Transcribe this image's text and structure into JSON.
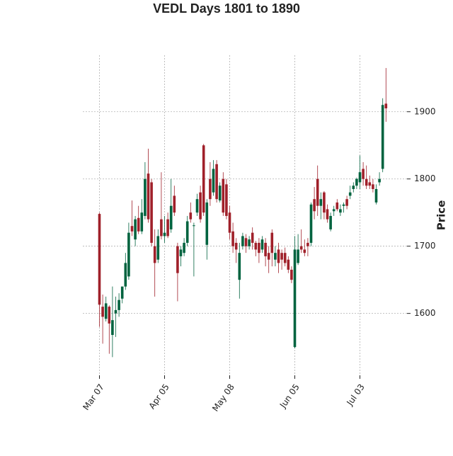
{
  "chart_data": {
    "type": "candlestick",
    "title": "VEDL Days 1801 to 1890",
    "ylabel": "Price",
    "categories": [
      "Mar 07",
      null,
      null,
      null,
      null,
      null,
      null,
      null,
      null,
      null,
      null,
      null,
      null,
      null,
      null,
      null,
      null,
      null,
      null,
      null,
      "Apr 05",
      null,
      null,
      null,
      null,
      null,
      null,
      null,
      null,
      null,
      null,
      null,
      null,
      null,
      null,
      null,
      null,
      null,
      null,
      null,
      "May 08",
      null,
      null,
      null,
      null,
      null,
      null,
      null,
      null,
      null,
      null,
      null,
      null,
      null,
      null,
      null,
      null,
      null,
      null,
      null,
      "Jun 05",
      null,
      null,
      null,
      null,
      null,
      null,
      null,
      null,
      null,
      null,
      null,
      null,
      null,
      null,
      null,
      null,
      null,
      null,
      null,
      "Jul 03",
      null,
      null,
      null,
      null,
      null,
      null,
      null,
      null
    ],
    "open": [
      1748,
      1610,
      1592,
      1610,
      1568,
      1600,
      1605,
      1622,
      1640,
      1655,
      1730,
      1710,
      1742,
      1722,
      1745,
      1808,
      1795,
      1700,
      1680,
      1740,
      1715,
      1740,
      1725,
      1775,
      1700,
      1685,
      1690,
      1705,
      1750,
      1730,
      1750,
      1780,
      1850,
      1702,
      1800,
      1780,
      1822,
      1768,
      1800,
      1792,
      1750,
      1722,
      1705,
      1650,
      1700,
      1712,
      1700,
      1720,
      1705,
      1705,
      1695,
      1705,
      1690,
      1720,
      1680,
      1695,
      1690,
      1690,
      1680,
      1665,
      1550,
      1675,
      1700,
      1695,
      1705,
      1705,
      1770,
      1800,
      1760,
      1780,
      1755,
      1725,
      1752,
      1765,
      1750,
      1760,
      1770,
      1775,
      1785,
      1790,
      1795,
      1815,
      1800,
      1795,
      1792,
      1765,
      1795,
      1815,
      1912
    ],
    "high": [
      1750,
      1628,
      1625,
      1612,
      1640,
      1625,
      1630,
      1640,
      1690,
      1735,
      1768,
      1745,
      1760,
      1770,
      1825,
      1845,
      1800,
      1725,
      1725,
      1810,
      1745,
      1750,
      1800,
      1790,
      1705,
      1700,
      1712,
      1745,
      1765,
      1735,
      1778,
      1790,
      1852,
      1770,
      1825,
      1828,
      1828,
      1795,
      1810,
      1800,
      1760,
      1735,
      1712,
      1705,
      1720,
      1718,
      1715,
      1728,
      1708,
      1712,
      1715,
      1712,
      1700,
      1725,
      1700,
      1705,
      1695,
      1698,
      1685,
      1670,
      1715,
      1718,
      1725,
      1710,
      1712,
      1765,
      1788,
      1820,
      1780,
      1782,
      1762,
      1750,
      1760,
      1770,
      1762,
      1765,
      1775,
      1790,
      1795,
      1802,
      1835,
      1825,
      1820,
      1805,
      1800,
      1792,
      1810,
      1920,
      1965
    ],
    "low": [
      1580,
      1555,
      1588,
      1540,
      1535,
      1565,
      1595,
      1615,
      1635,
      1650,
      1715,
      1700,
      1718,
      1718,
      1740,
      1735,
      1700,
      1625,
      1675,
      1710,
      1705,
      1712,
      1720,
      1745,
      1618,
      1670,
      1685,
      1700,
      1735,
      1655,
      1745,
      1735,
      1745,
      1680,
      1760,
      1775,
      1765,
      1765,
      1745,
      1740,
      1710,
      1690,
      1675,
      1622,
      1695,
      1690,
      1695,
      1695,
      1685,
      1675,
      1690,
      1670,
      1660,
      1670,
      1670,
      1660,
      1665,
      1670,
      1660,
      1645,
      1548,
      1672,
      1690,
      1685,
      1685,
      1700,
      1740,
      1745,
      1740,
      1740,
      1735,
      1722,
      1745,
      1752,
      1745,
      1750,
      1755,
      1770,
      1780,
      1785,
      1785,
      1790,
      1785,
      1785,
      1780,
      1762,
      1790,
      1810,
      1885
    ],
    "close": [
      1613,
      1595,
      1615,
      1585,
      1590,
      1605,
      1620,
      1640,
      1675,
      1720,
      1722,
      1740,
      1722,
      1750,
      1800,
      1740,
      1705,
      1675,
      1715,
      1715,
      1720,
      1715,
      1760,
      1750,
      1660,
      1695,
      1705,
      1737,
      1740,
      1731,
      1770,
      1740,
      1750,
      1765,
      1770,
      1815,
      1770,
      1790,
      1750,
      1745,
      1720,
      1700,
      1695,
      1690,
      1715,
      1700,
      1710,
      1705,
      1695,
      1690,
      1710,
      1685,
      1680,
      1690,
      1690,
      1675,
      1680,
      1675,
      1665,
      1650,
      1695,
      1695,
      1695,
      1690,
      1700,
      1762,
      1752,
      1760,
      1770,
      1750,
      1740,
      1745,
      1755,
      1755,
      1755,
      1762,
      1760,
      1780,
      1790,
      1800,
      1810,
      1800,
      1790,
      1790,
      1785,
      1785,
      1800,
      1910,
      1905
    ],
    "up_color": "#00633f",
    "down_color": "#a0202a",
    "ylim": [
      1508,
      1984
    ],
    "yticks": [
      1600,
      1700,
      1800,
      1900
    ],
    "grid": true
  }
}
